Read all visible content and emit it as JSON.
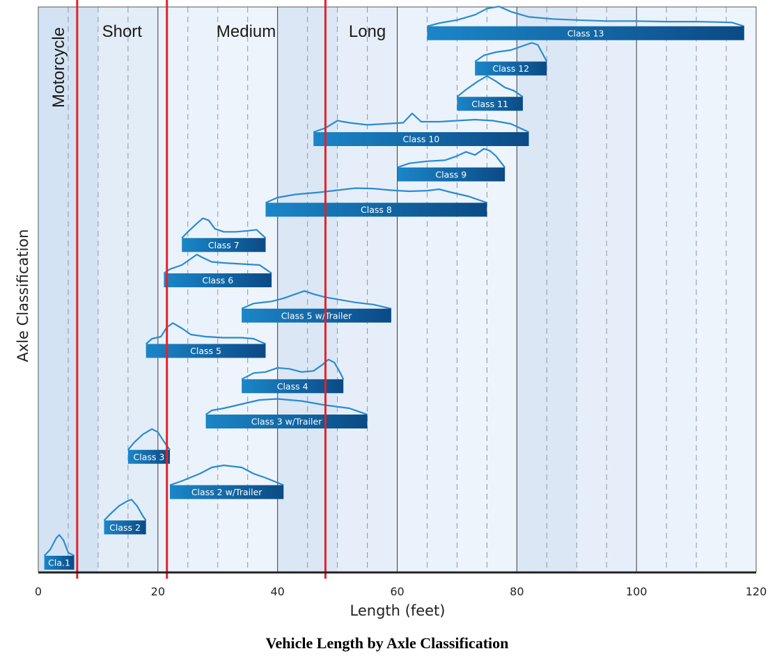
{
  "chart_data": {
    "type": "bar",
    "title": "Vehicle Length by Axle Classification",
    "xlabel": "Length (feet)",
    "ylabel": "Axle Classification",
    "xlim": [
      0,
      120
    ],
    "xticks": [
      0,
      20,
      40,
      60,
      80,
      100,
      120
    ],
    "minor_gridlines": true,
    "length_bins": [
      {
        "label": "Motorcycle",
        "from": 0,
        "to": 6.5
      },
      {
        "label": "Short",
        "from": 6.5,
        "to": 21.5
      },
      {
        "label": "Medium",
        "from": 21.5,
        "to": 48
      },
      {
        "label": "Long",
        "from": 48,
        "to": 120
      }
    ],
    "thresholds": [
      6.5,
      21.5,
      48
    ],
    "threshold_color": "#e32227",
    "bar_color_start": "#1b86c8",
    "bar_color_end": "#0b4a85",
    "curve_color": "#2a8bd0",
    "series": [
      {
        "name": "Cla.1",
        "min": 1,
        "max": 6,
        "curve": [
          [
            1,
            0
          ],
          [
            2,
            0.3
          ],
          [
            3,
            0.85
          ],
          [
            3.5,
            1
          ],
          [
            4.2,
            0.75
          ],
          [
            5,
            0.15
          ],
          [
            6,
            0
          ]
        ]
      },
      {
        "name": "Class 2",
        "min": 11,
        "max": 18,
        "curve": [
          [
            11,
            0
          ],
          [
            12,
            0.3
          ],
          [
            13.5,
            0.7
          ],
          [
            15,
            0.95
          ],
          [
            15.6,
            1
          ],
          [
            16.5,
            0.7
          ],
          [
            17.5,
            0.2
          ],
          [
            18,
            0
          ]
        ]
      },
      {
        "name": "Class 2 w/Trailer",
        "min": 22,
        "max": 41,
        "curve": [
          [
            22,
            0
          ],
          [
            24,
            0.2
          ],
          [
            27,
            0.55
          ],
          [
            29,
            0.85
          ],
          [
            31,
            0.95
          ],
          [
            34,
            0.85
          ],
          [
            36,
            0.55
          ],
          [
            38,
            0.35
          ],
          [
            41,
            0
          ]
        ]
      },
      {
        "name": "Class 3",
        "min": 15,
        "max": 22,
        "curve": [
          [
            15,
            0
          ],
          [
            16,
            0.35
          ],
          [
            17.5,
            0.75
          ],
          [
            19,
            1
          ],
          [
            20,
            0.85
          ],
          [
            21,
            0.4
          ],
          [
            22,
            0
          ]
        ]
      },
      {
        "name": "Class 3 w/Trailer",
        "min": 28,
        "max": 55,
        "curve": [
          [
            28,
            0
          ],
          [
            29,
            0.2
          ],
          [
            31,
            0.3
          ],
          [
            34,
            0.5
          ],
          [
            37,
            0.7
          ],
          [
            40,
            0.75
          ],
          [
            44,
            0.65
          ],
          [
            48,
            0.45
          ],
          [
            52,
            0.3
          ],
          [
            55,
            0
          ]
        ]
      },
      {
        "name": "Class 4",
        "min": 34,
        "max": 51,
        "curve": [
          [
            34,
            0
          ],
          [
            36,
            0.3
          ],
          [
            38,
            0.35
          ],
          [
            40,
            0.55
          ],
          [
            42,
            0.5
          ],
          [
            44,
            0.35
          ],
          [
            46,
            0.4
          ],
          [
            47.5,
            0.7
          ],
          [
            48.5,
            0.95
          ],
          [
            49.5,
            0.8
          ],
          [
            50.5,
            0.3
          ],
          [
            51,
            0
          ]
        ]
      },
      {
        "name": "Class 5",
        "min": 18,
        "max": 38,
        "curve": [
          [
            18,
            0
          ],
          [
            19,
            0.25
          ],
          [
            20.5,
            0.35
          ],
          [
            21.5,
            0.8
          ],
          [
            22.5,
            1
          ],
          [
            24,
            0.75
          ],
          [
            25.5,
            0.45
          ],
          [
            28,
            0.35
          ],
          [
            31,
            0.3
          ],
          [
            34,
            0.3
          ],
          [
            36,
            0.25
          ],
          [
            38,
            0
          ]
        ]
      },
      {
        "name": "Class 5 w/Trailer",
        "min": 34,
        "max": 59,
        "curve": [
          [
            34,
            0
          ],
          [
            36,
            0.25
          ],
          [
            39,
            0.35
          ],
          [
            41,
            0.5
          ],
          [
            43,
            0.7
          ],
          [
            44.5,
            0.85
          ],
          [
            46,
            0.7
          ],
          [
            48,
            0.55
          ],
          [
            50,
            0.45
          ],
          [
            53,
            0.3
          ],
          [
            56,
            0.2
          ],
          [
            59,
            0
          ]
        ]
      },
      {
        "name": "Class 6",
        "min": 21,
        "max": 39,
        "curve": [
          [
            21,
            0
          ],
          [
            22,
            0.2
          ],
          [
            24,
            0.4
          ],
          [
            25.5,
            0.7
          ],
          [
            26.5,
            0.9
          ],
          [
            27.5,
            0.75
          ],
          [
            29,
            0.55
          ],
          [
            31,
            0.5
          ],
          [
            34,
            0.45
          ],
          [
            37,
            0.4
          ],
          [
            39,
            0
          ]
        ]
      },
      {
        "name": "Class 7",
        "min": 24,
        "max": 38,
        "curve": [
          [
            24,
            0
          ],
          [
            25,
            0.3
          ],
          [
            26.5,
            0.7
          ],
          [
            27.5,
            0.95
          ],
          [
            28.5,
            0.85
          ],
          [
            29.5,
            0.45
          ],
          [
            31,
            0.3
          ],
          [
            33,
            0.3
          ],
          [
            35,
            0.35
          ],
          [
            36.5,
            0.4
          ],
          [
            38,
            0
          ]
        ]
      },
      {
        "name": "Class 8",
        "min": 38,
        "max": 75,
        "curve": [
          [
            38,
            0
          ],
          [
            40,
            0.25
          ],
          [
            43,
            0.4
          ],
          [
            47,
            0.5
          ],
          [
            50,
            0.6
          ],
          [
            53,
            0.7
          ],
          [
            56,
            0.68
          ],
          [
            59,
            0.6
          ],
          [
            62,
            0.55
          ],
          [
            65,
            0.58
          ],
          [
            67,
            0.65
          ],
          [
            69,
            0.5
          ],
          [
            72,
            0.3
          ],
          [
            75,
            0
          ]
        ]
      },
      {
        "name": "Class 9",
        "min": 60,
        "max": 78,
        "curve": [
          [
            60,
            0
          ],
          [
            62,
            0.2
          ],
          [
            65,
            0.3
          ],
          [
            68,
            0.35
          ],
          [
            70,
            0.55
          ],
          [
            71.5,
            0.75
          ],
          [
            73,
            0.6
          ],
          [
            74.5,
            0.9
          ],
          [
            75.5,
            0.8
          ],
          [
            76.5,
            0.55
          ],
          [
            78,
            0
          ]
        ]
      },
      {
        "name": "Class 10",
        "min": 46,
        "max": 82,
        "curve": [
          [
            46,
            0
          ],
          [
            48,
            0.2
          ],
          [
            50,
            0.55
          ],
          [
            52,
            0.45
          ],
          [
            55,
            0.35
          ],
          [
            58,
            0.4
          ],
          [
            61,
            0.45
          ],
          [
            62.5,
            0.9
          ],
          [
            64,
            0.5
          ],
          [
            67,
            0.5
          ],
          [
            70,
            0.55
          ],
          [
            73,
            0.6
          ],
          [
            76,
            0.55
          ],
          [
            79,
            0.4
          ],
          [
            82,
            0
          ]
        ]
      },
      {
        "name": "Class 11",
        "min": 70,
        "max": 81,
        "curve": [
          [
            70,
            0
          ],
          [
            71.5,
            0.35
          ],
          [
            73.5,
            0.75
          ],
          [
            75,
            1
          ],
          [
            76.5,
            0.75
          ],
          [
            78,
            0.45
          ],
          [
            79.5,
            0.3
          ],
          [
            81,
            0
          ]
        ]
      },
      {
        "name": "Class 12",
        "min": 73,
        "max": 85,
        "curve": [
          [
            73,
            0
          ],
          [
            74.5,
            0.3
          ],
          [
            76.5,
            0.45
          ],
          [
            79,
            0.55
          ],
          [
            81,
            0.75
          ],
          [
            82.5,
            0.9
          ],
          [
            83.5,
            0.8
          ],
          [
            85,
            0
          ]
        ]
      },
      {
        "name": "Class 13",
        "min": 65,
        "max": 118,
        "curve": [
          [
            65,
            0
          ],
          [
            67,
            0.15
          ],
          [
            70,
            0.3
          ],
          [
            73,
            0.55
          ],
          [
            75,
            0.85
          ],
          [
            77,
            0.95
          ],
          [
            79,
            0.7
          ],
          [
            82,
            0.45
          ],
          [
            86,
            0.35
          ],
          [
            90,
            0.3
          ],
          [
            95,
            0.25
          ],
          [
            100,
            0.25
          ],
          [
            105,
            0.22
          ],
          [
            110,
            0.22
          ],
          [
            114,
            0.2
          ],
          [
            116,
            0.18
          ],
          [
            118,
            0
          ]
        ]
      }
    ]
  }
}
